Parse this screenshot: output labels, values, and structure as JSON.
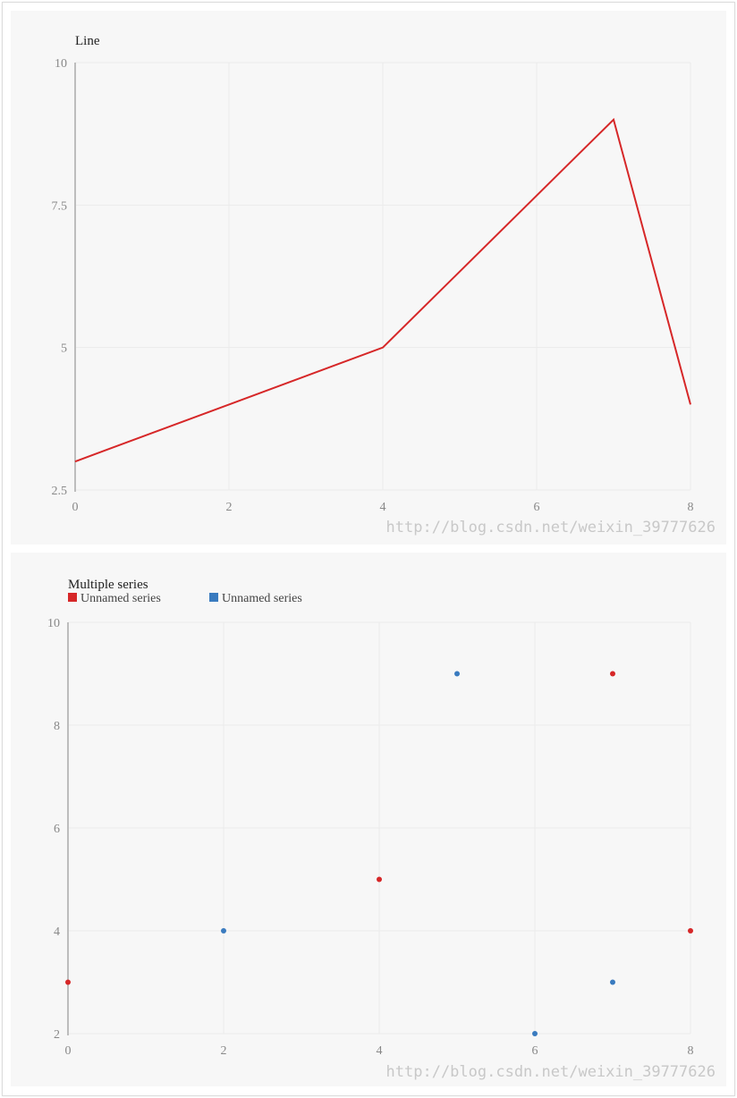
{
  "watermark": "http://blog.csdn.net/weixin_39777626",
  "colors": {
    "red": "#d62728",
    "blue": "#3a7bbf",
    "panel_bg": "#f7f7f7",
    "grid": "#ebebeb",
    "axis": "#bdbdbd",
    "tick_text": "#888888"
  },
  "chart_data": [
    {
      "type": "line",
      "title": "Line",
      "xlabel": "",
      "ylabel": "",
      "xlim": [
        0,
        8
      ],
      "ylim": [
        2.5,
        10
      ],
      "x_ticks": [
        0,
        2,
        4,
        6,
        8
      ],
      "y_ticks": [
        2.5,
        5,
        7.5,
        10
      ],
      "grid": true,
      "series": [
        {
          "color": "#d62728",
          "points": [
            [
              0,
              3
            ],
            [
              4,
              5
            ],
            [
              7,
              9
            ],
            [
              8,
              4
            ]
          ]
        }
      ]
    },
    {
      "type": "scatter",
      "title": "Multiple series",
      "xlabel": "",
      "ylabel": "",
      "xlim": [
        0,
        8
      ],
      "ylim": [
        2,
        10
      ],
      "x_ticks": [
        0,
        2,
        4,
        6,
        8
      ],
      "y_ticks": [
        2,
        4,
        6,
        8,
        10
      ],
      "grid": true,
      "legend_position": "top-left",
      "series": [
        {
          "name": "Unnamed series",
          "color": "#d62728",
          "points": [
            [
              0,
              3
            ],
            [
              4,
              5
            ],
            [
              7,
              9
            ],
            [
              8,
              4
            ]
          ]
        },
        {
          "name": "Unnamed series",
          "color": "#3a7bbf",
          "points": [
            [
              2,
              4
            ],
            [
              5,
              9
            ],
            [
              6,
              2
            ],
            [
              7,
              3
            ]
          ]
        }
      ]
    }
  ]
}
